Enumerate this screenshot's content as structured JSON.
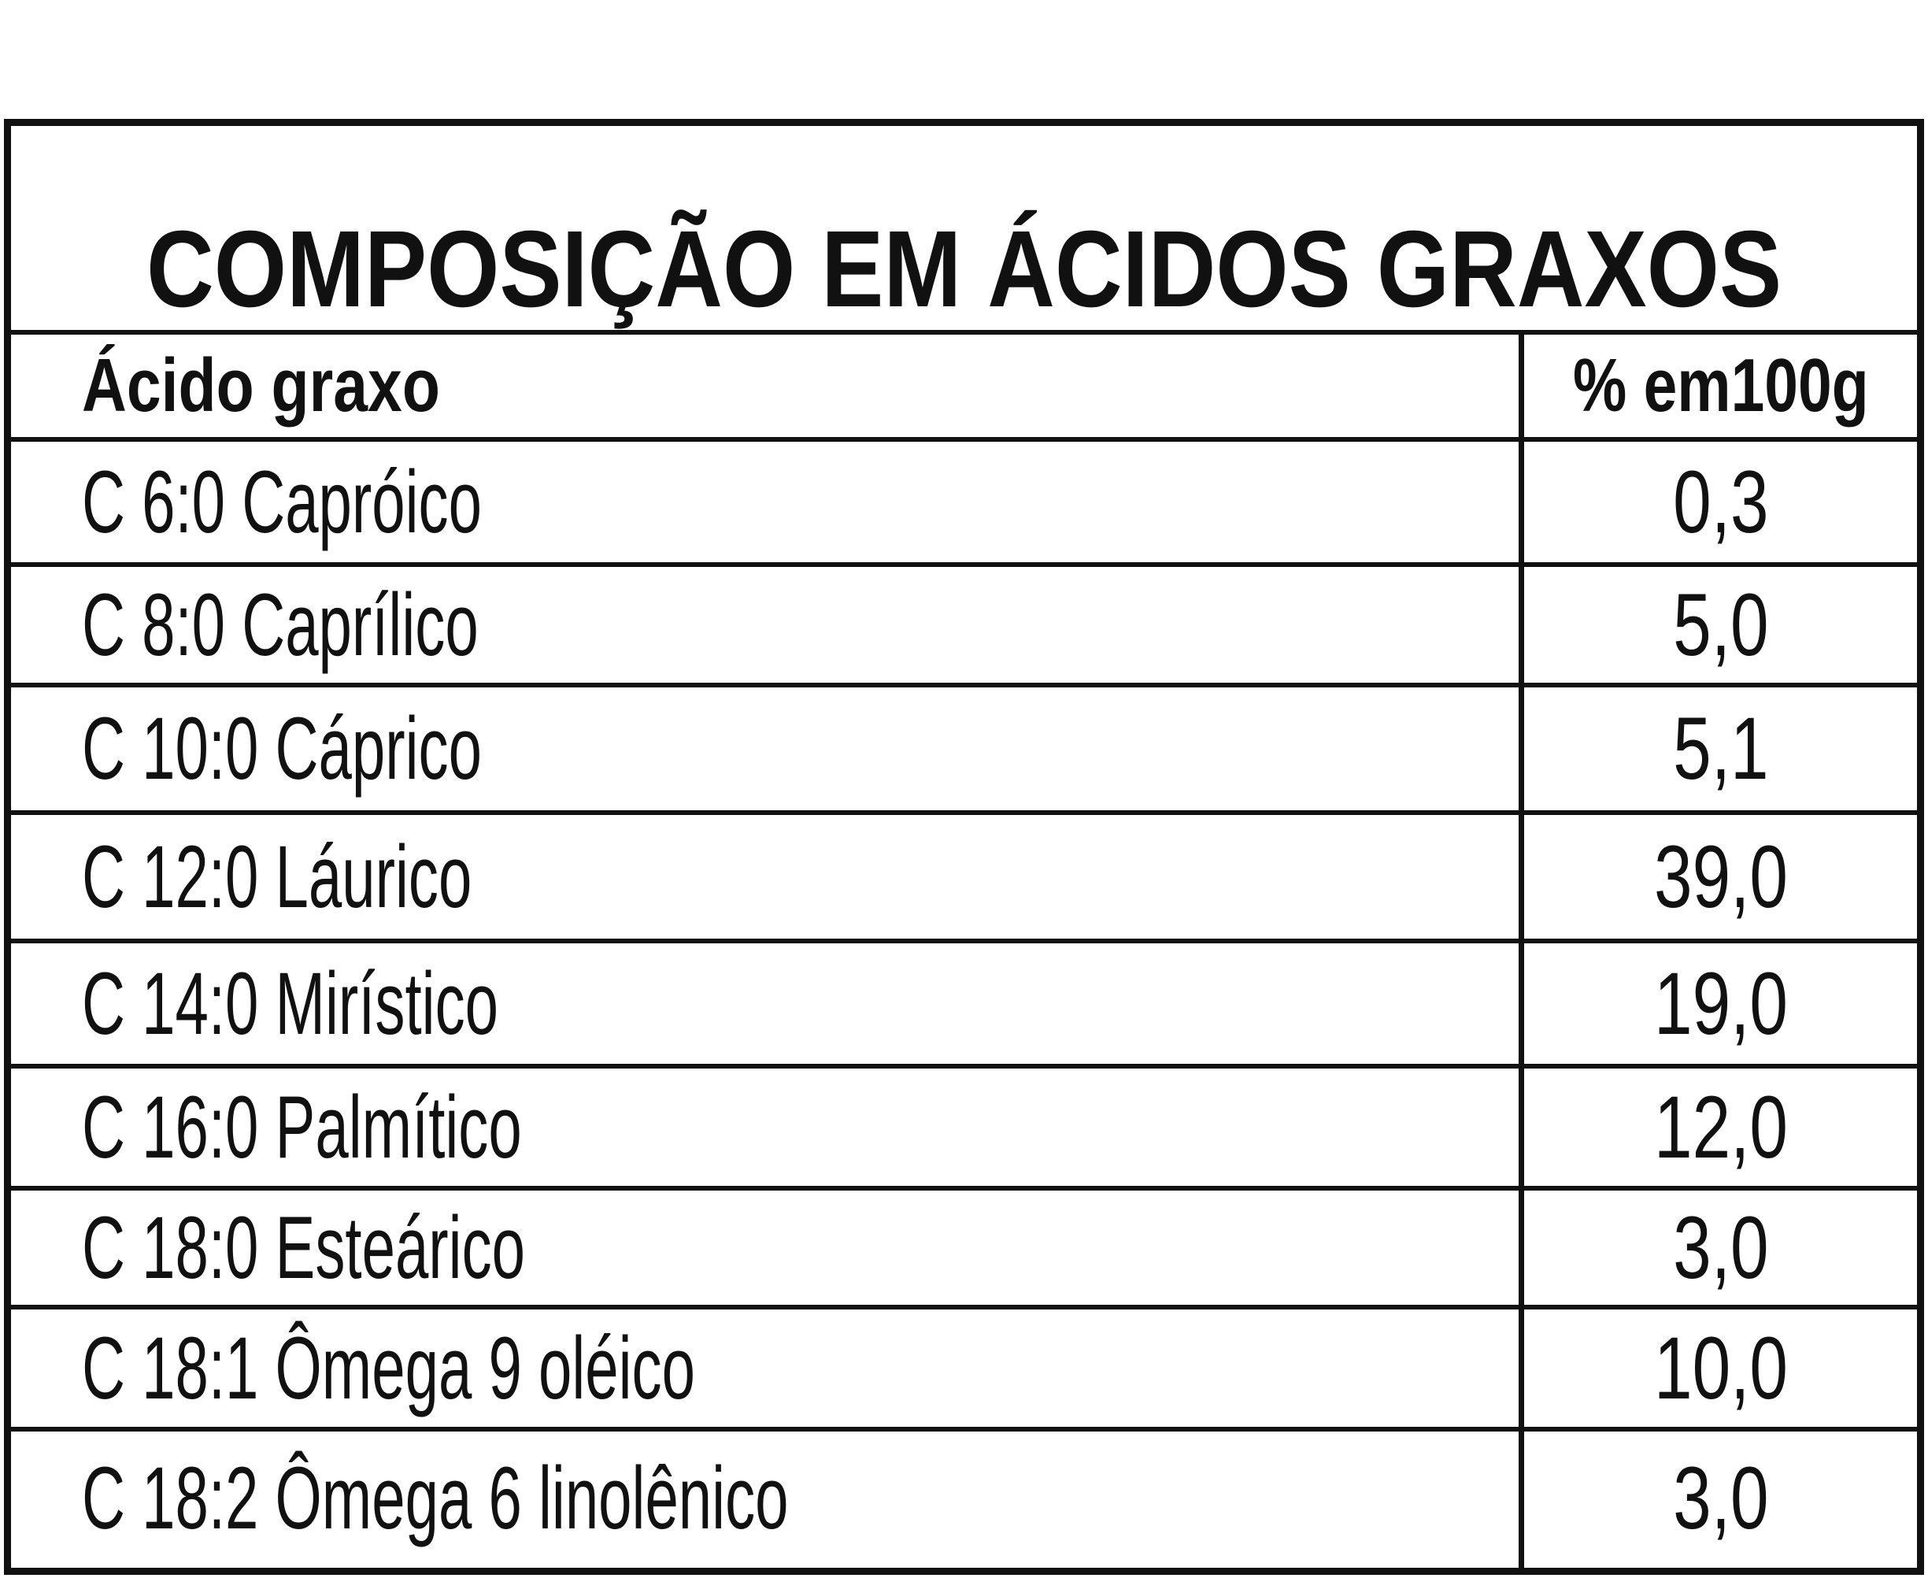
{
  "title": "COMPOSIÇÃO EM ÁCIDOS GRAXOS",
  "header": {
    "name": "Ácido graxo",
    "value": "% em100g"
  },
  "rows": [
    {
      "name": "C 6:0 Capróico",
      "value": "0,3"
    },
    {
      "name": "C 8:0 Caprílico",
      "value": "5,0"
    },
    {
      "name": "C 10:0 Cáprico",
      "value": "5,1"
    },
    {
      "name": "C 12:0 Láurico",
      "value": "39,0"
    },
    {
      "name": "C 14:0 Mirístico",
      "value": "19,0"
    },
    {
      "name": "C 16:0 Palmítico",
      "value": "12,0"
    },
    {
      "name": "C 18:0 Esteárico",
      "value": "3,0"
    },
    {
      "name": "C 18:1 Ômega 9 oléico",
      "value": "10,0"
    },
    {
      "name": "C 18:2 Ômega 6 linolênico",
      "value": "3,0"
    }
  ],
  "colors": {
    "text": "#111111",
    "border": "#111111",
    "background": "#ffffff"
  }
}
